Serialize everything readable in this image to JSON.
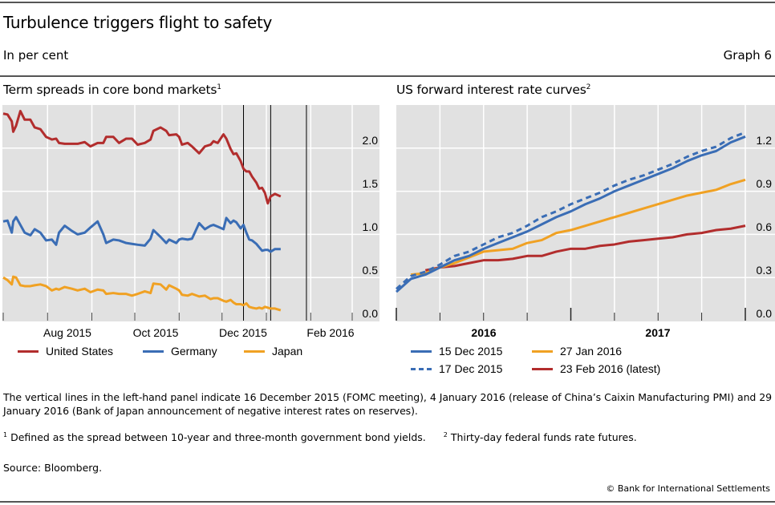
{
  "header": {
    "title": "Turbulence triggers flight to safety",
    "subtitle": "In per cent",
    "graph_number": "Graph 6"
  },
  "chart_data": [
    {
      "type": "line",
      "title": "Term spreads in core bond markets",
      "title_footnote": "1",
      "xlabel": "",
      "ylabel": "",
      "x_ticks": [
        "Aug 2015",
        "Oct 2015",
        "Dec 2015",
        "Feb 2016"
      ],
      "x_range": [
        "2015-07-01",
        "2016-03-01"
      ],
      "y_ticks": [
        "0.0",
        "0.5",
        "1.0",
        "1.5",
        "2.0"
      ],
      "ylim": [
        0.0,
        2.5
      ],
      "y_axis_side": "right",
      "grid": true,
      "legend_position": "bottom",
      "vertical_markers": [
        {
          "date": "2015-12-16",
          "event": "FOMC meeting"
        },
        {
          "date": "2016-01-04",
          "event": "Release of China's Caixin Manufacturing PMI"
        },
        {
          "date": "2016-01-29",
          "event": "Bank of Japan announcement of negative interest rates on reserves"
        }
      ],
      "x_days": [
        0,
        3,
        6,
        7,
        9,
        12,
        15,
        19,
        22,
        26,
        30,
        34,
        37,
        39,
        43,
        48,
        52,
        57,
        61,
        66,
        70,
        72,
        77,
        81,
        86,
        90,
        94,
        99,
        103,
        105,
        110,
        114,
        116,
        121,
        123,
        125,
        129,
        132,
        137,
        141,
        145,
        147,
        150,
        154,
        156,
        159,
        161,
        163,
        166,
        168,
        170,
        172,
        174,
        177,
        179,
        181,
        183,
        185,
        187,
        190,
        194
      ],
      "series": [
        {
          "name": "United States",
          "color": "#b22d2d",
          "values": [
            2.4,
            2.39,
            2.31,
            2.19,
            2.26,
            2.43,
            2.33,
            2.33,
            2.24,
            2.22,
            2.13,
            2.1,
            2.11,
            2.06,
            2.05,
            2.05,
            2.05,
            2.07,
            2.02,
            2.06,
            2.06,
            2.13,
            2.13,
            2.06,
            2.11,
            2.11,
            2.04,
            2.06,
            2.1,
            2.2,
            2.24,
            2.2,
            2.15,
            2.16,
            2.13,
            2.04,
            2.06,
            2.02,
            1.94,
            2.02,
            2.04,
            2.08,
            2.06,
            2.16,
            2.11,
            1.99,
            1.93,
            1.94,
            1.85,
            1.76,
            1.73,
            1.73,
            1.67,
            1.6,
            1.53,
            1.54,
            1.48,
            1.36,
            1.44,
            1.47,
            1.44
          ]
        },
        {
          "name": "Germany",
          "color": "#3a6db5",
          "values": [
            1.15,
            1.16,
            1.02,
            1.15,
            1.2,
            1.11,
            1.02,
            0.99,
            1.06,
            1.02,
            0.93,
            0.94,
            0.88,
            1.02,
            1.1,
            1.04,
            1.0,
            1.02,
            1.08,
            1.15,
            1.0,
            0.9,
            0.94,
            0.93,
            0.9,
            0.89,
            0.88,
            0.87,
            0.95,
            1.05,
            0.97,
            0.9,
            0.94,
            0.9,
            0.94,
            0.95,
            0.94,
            0.95,
            1.13,
            1.06,
            1.1,
            1.11,
            1.09,
            1.06,
            1.19,
            1.13,
            1.16,
            1.14,
            1.07,
            1.11,
            1.02,
            0.94,
            0.93,
            0.89,
            0.85,
            0.81,
            0.82,
            0.82,
            0.8,
            0.83,
            0.83
          ]
        },
        {
          "name": "Japan",
          "color": "#f0a123",
          "values": [
            0.5,
            0.47,
            0.42,
            0.51,
            0.5,
            0.41,
            0.4,
            0.4,
            0.41,
            0.42,
            0.4,
            0.35,
            0.37,
            0.36,
            0.39,
            0.37,
            0.35,
            0.37,
            0.33,
            0.36,
            0.35,
            0.31,
            0.32,
            0.31,
            0.31,
            0.29,
            0.31,
            0.34,
            0.32,
            0.43,
            0.42,
            0.36,
            0.41,
            0.37,
            0.35,
            0.3,
            0.29,
            0.31,
            0.28,
            0.29,
            0.25,
            0.26,
            0.26,
            0.23,
            0.22,
            0.24,
            0.21,
            0.19,
            0.19,
            0.18,
            0.2,
            0.16,
            0.15,
            0.14,
            0.15,
            0.14,
            0.16,
            0.15,
            0.14,
            0.14,
            0.12
          ]
        }
      ]
    },
    {
      "type": "line",
      "title": "US forward interest rate curves",
      "title_footnote": "2",
      "xlabel": "",
      "ylabel": "",
      "x_ticks": [
        "2016",
        "2017"
      ],
      "x_range": [
        "2016-01",
        "2018-01"
      ],
      "y_ticks": [
        "0.0",
        "0.3",
        "0.6",
        "0.9",
        "1.2"
      ],
      "ylim": [
        0.0,
        1.5
      ],
      "y_axis_side": "right",
      "grid": true,
      "legend_position": "bottom",
      "x_months": [
        0,
        1,
        2,
        3,
        4,
        5,
        6,
        7,
        8,
        9,
        10,
        11,
        12,
        13,
        14,
        15,
        16,
        17,
        18,
        19,
        20,
        21,
        22,
        23,
        24
      ],
      "series": [
        {
          "name": "15 Dec 2015",
          "color": "#3a6db5",
          "style": "solid",
          "values": [
            0.2,
            0.29,
            0.32,
            0.37,
            0.42,
            0.45,
            0.5,
            0.54,
            0.58,
            0.62,
            0.67,
            0.72,
            0.76,
            0.81,
            0.85,
            0.9,
            0.94,
            0.98,
            1.02,
            1.06,
            1.11,
            1.15,
            1.18,
            1.24,
            1.28
          ]
        },
        {
          "name": "17 Dec 2015",
          "color": "#3a6db5",
          "style": "dashed",
          "values": [
            0.22,
            0.31,
            0.34,
            0.39,
            0.45,
            0.48,
            0.53,
            0.58,
            0.61,
            0.66,
            0.72,
            0.76,
            0.81,
            0.85,
            0.89,
            0.94,
            0.98,
            1.01,
            1.05,
            1.09,
            1.14,
            1.18,
            1.21,
            1.27,
            1.31
          ]
        },
        {
          "name": "27 Jan 2016",
          "color": "#f0a123",
          "style": "solid",
          "values": [
            null,
            0.32,
            0.33,
            0.37,
            0.4,
            0.44,
            0.48,
            0.49,
            0.5,
            0.54,
            0.56,
            0.61,
            0.63,
            0.66,
            0.69,
            0.72,
            0.75,
            0.78,
            0.81,
            0.84,
            0.87,
            0.89,
            0.91,
            0.95,
            0.98
          ]
        },
        {
          "name": "23 Feb 2016 (latest)",
          "color": "#b22d2d",
          "style": "solid",
          "values": [
            null,
            null,
            0.35,
            0.37,
            0.38,
            0.4,
            0.42,
            0.42,
            0.43,
            0.45,
            0.45,
            0.48,
            0.5,
            0.5,
            0.52,
            0.53,
            0.55,
            0.56,
            0.57,
            0.58,
            0.6,
            0.61,
            0.63,
            0.64,
            0.66
          ]
        }
      ]
    }
  ],
  "left_panel": {
    "title": "Term spreads in core bond markets",
    "footnote_marker": "1",
    "x_labels": [
      "Aug 2015",
      "Oct 2015",
      "Dec 2015",
      "Feb 2016"
    ],
    "y_labels": [
      "2.0",
      "1.5",
      "1.0",
      "0.5",
      "0.0"
    ],
    "legend": [
      "United States",
      "Germany",
      "Japan"
    ]
  },
  "right_panel": {
    "title": "US forward interest rate curves",
    "footnote_marker": "2",
    "x_labels": [
      "2016",
      "2017"
    ],
    "y_labels": [
      "1.2",
      "0.9",
      "0.6",
      "0.3",
      "0.0"
    ],
    "legend": [
      "15 Dec 2015",
      "27 Jan 2016",
      "17 Dec 2015",
      "23 Feb 2016 (latest)"
    ]
  },
  "notes": {
    "main": "The vertical lines in the left-hand panel indicate 16 December 2015 (FOMC meeting), 4 January 2016 (release of China’s Caixin Manufacturing PMI) and 29 January 2016 (Bank of Japan announcement of negative interest rates on reserves).",
    "fn1_marker": "1",
    "fn1": "Defined as the spread between 10-year and three-month government bond yields.",
    "fn2_marker": "2",
    "fn2": "Thirty-day federal funds rate futures.",
    "source": "Source: Bloomberg.",
    "copyright": "© Bank for International Settlements"
  },
  "colors": {
    "us": "#b22d2d",
    "germany": "#3a6db5",
    "japan": "#f0a123",
    "plot_bg": "#e1e1e1",
    "grid": "#ffffff"
  }
}
